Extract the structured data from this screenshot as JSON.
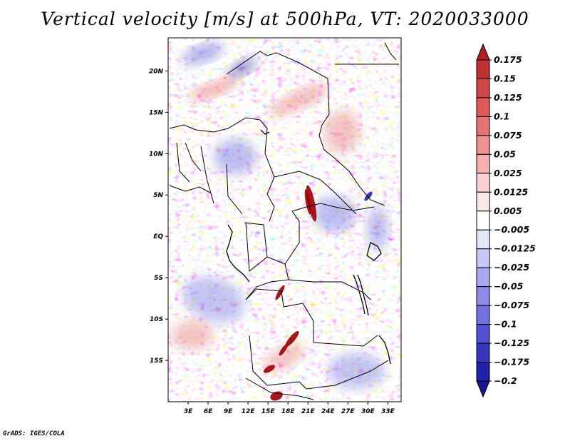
{
  "title": "Vertical velocity [m/s] at 500hPa, VT: 2020033000",
  "credit": "GrADS: IGES/COLA",
  "map": {
    "lon_range": [
      0,
      35
    ],
    "lat_range": [
      -20,
      24
    ],
    "lat_labels": [
      "20N",
      "15N",
      "10N",
      "5N",
      "EQ",
      "5S",
      "10S",
      "15S"
    ],
    "lat_values": [
      20,
      15,
      10,
      5,
      0,
      -5,
      -10,
      -15
    ],
    "lon_labels": [
      "3E",
      "6E",
      "9E",
      "12E",
      "15E",
      "18E",
      "21E",
      "24E",
      "27E",
      "30E",
      "33E"
    ],
    "lon_values": [
      3,
      6,
      9,
      12,
      15,
      18,
      21,
      24,
      27,
      30,
      33
    ]
  },
  "colorbar": {
    "labels": [
      "0.175",
      "0.15",
      "0.125",
      "0.1",
      "0.075",
      "0.05",
      "0.025",
      "0.0125",
      "0.005",
      "-0.005",
      "-0.0125",
      "-0.025",
      "-0.05",
      "-0.075",
      "-0.1",
      "-0.125",
      "-0.175",
      "-0.2"
    ],
    "colors": [
      "#b02222",
      "#c03030",
      "#d04545",
      "#e05858",
      "#e57373",
      "#ef9090",
      "#f5b0b0",
      "#fad0d0",
      "#fde8e8",
      "#ffffff",
      "#e6e6fa",
      "#c8c8f5",
      "#a8a8f0",
      "#8c8ce8",
      "#7070e0",
      "#5050d0",
      "#3535c0",
      "#2020a8",
      "#18188c"
    ]
  },
  "colors": {
    "positive": "#e05858",
    "negative": "#7070e0",
    "strong_positive": "#9a0000",
    "strong_negative": "#20209a"
  }
}
